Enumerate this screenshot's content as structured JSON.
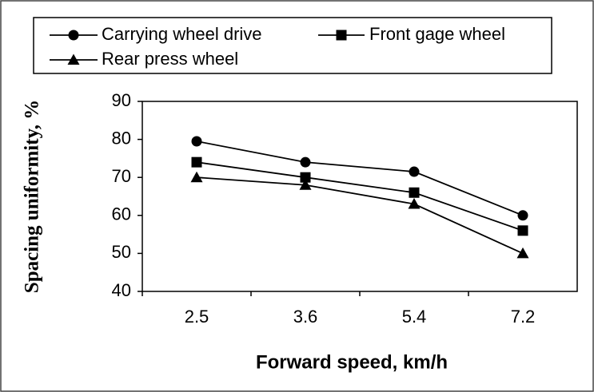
{
  "chart_data": {
    "type": "line",
    "x_label": "Forward speed, km/h",
    "y_label": "Spacing uniformity, %",
    "categories": [
      "2.5",
      "3.6",
      "5.4",
      "7.2"
    ],
    "series": [
      {
        "name": "Carrying wheel drive",
        "color": "#000000",
        "marker": "circle",
        "values": [
          79.5,
          74,
          71.5,
          60
        ]
      },
      {
        "name": "Front gage wheel",
        "color": "#000000",
        "marker": "square",
        "values": [
          74,
          70,
          66,
          56
        ]
      },
      {
        "name": "Rear press wheel",
        "color": "#000000",
        "marker": "triangle",
        "values": [
          70,
          68,
          63,
          50
        ]
      }
    ],
    "ylim": [
      40,
      90
    ],
    "yticks": [
      40,
      50,
      60,
      70,
      80,
      90
    ],
    "grid": false,
    "legend": "top"
  }
}
